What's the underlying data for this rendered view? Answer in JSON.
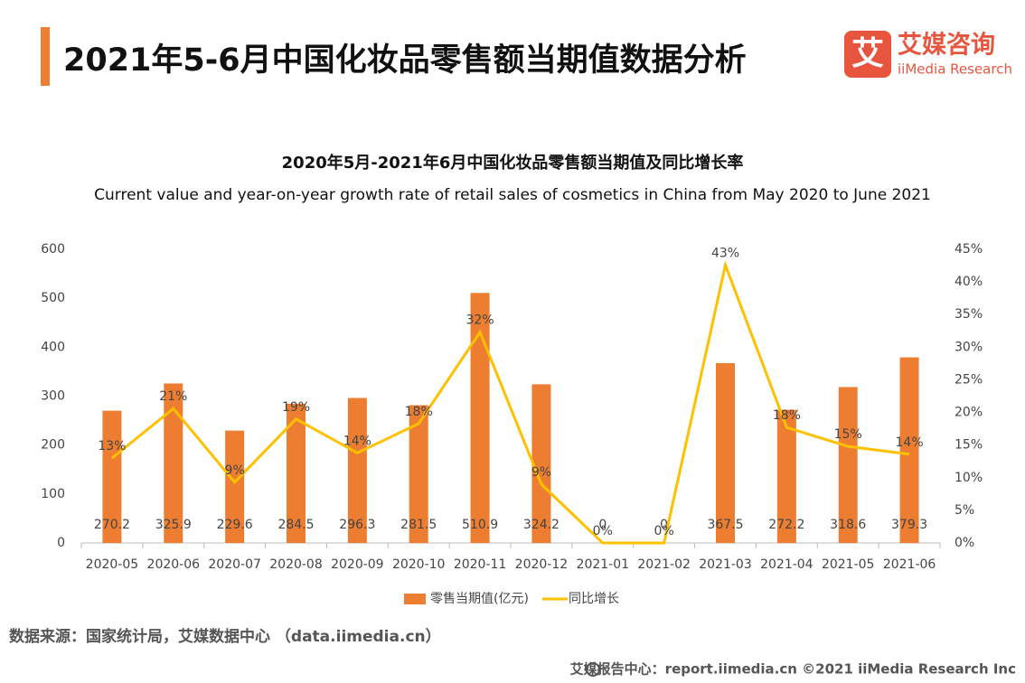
{
  "header": {
    "title": "2021年5-6月中国化妆品零售额当期值数据分析"
  },
  "logo": {
    "icon": "艾",
    "name": "艾媒咨询",
    "sub": "iiMedia Research"
  },
  "chart_data": {
    "type": "bar",
    "title": "2020年5月-2021年6月中国化妆品零售额当期值及同比增长率",
    "subtitle": "Current value and year-on-year growth rate of retail sales of cosmetics in China from May 2020 to June 2021",
    "categories": [
      "2020-05",
      "2020-06",
      "2020-07",
      "2020-08",
      "2020-09",
      "2020-10",
      "2020-11",
      "2020-12",
      "2021-01",
      "2021-02",
      "2021-03",
      "2021-04",
      "2021-05",
      "2021-06"
    ],
    "series": [
      {
        "name": "零售当期值(亿元)",
        "type": "bar",
        "color": "#ed7d31",
        "values": [
          270.2,
          325.9,
          229.6,
          284.5,
          296.3,
          281.5,
          510.9,
          324.2,
          0,
          0,
          367.5,
          272.2,
          318.6,
          379.3
        ]
      },
      {
        "name": "同比增长",
        "type": "line",
        "axis": "y2",
        "color": "#ffc000",
        "values": [
          13.0,
          20.6,
          9.3,
          19.0,
          13.8,
          18.3,
          32.3,
          9.0,
          0,
          0,
          42.6,
          17.7,
          14.8,
          13.6
        ],
        "value_labels": [
          "13%",
          "21%",
          "9%",
          "19%",
          "14%",
          "18%",
          "32%",
          "9%",
          "0%",
          "0%",
          "43%",
          "18%",
          "15%",
          "14%"
        ]
      }
    ],
    "ylim": [
      0,
      600
    ],
    "yticks": [
      0,
      100,
      200,
      300,
      400,
      500,
      600
    ],
    "y2lim": [
      0,
      45
    ],
    "y2ticks": [
      {
        "value": 0,
        "label": "0%"
      },
      {
        "value": 5,
        "label": "5%"
      },
      {
        "value": 10,
        "label": "10%"
      },
      {
        "value": 15,
        "label": "15%"
      },
      {
        "value": 20,
        "label": "20%"
      },
      {
        "value": 25,
        "label": "25%"
      },
      {
        "value": 30,
        "label": "30%"
      },
      {
        "value": 35,
        "label": "35%"
      },
      {
        "value": 40,
        "label": "40%"
      },
      {
        "value": 45,
        "label": "45%"
      }
    ],
    "grid": false,
    "legend": "bottom"
  },
  "source": "数据来源：国家统计局，艾媒数据中心 （data.iimedia.cn）",
  "footer": "艾媒报告中心：report.iimedia.cn  ©2021  iiMedia Research  Inc"
}
